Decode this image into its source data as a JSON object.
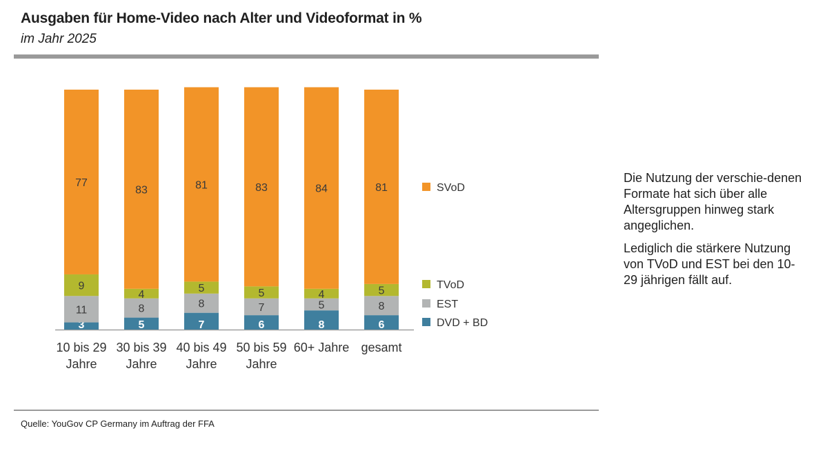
{
  "title": "Ausgaben für Home-Video nach Alter und Videoformat in %",
  "subtitle": "im Jahr 2025",
  "source": "Quelle: YouGov CP Germany im Auftrag der FFA",
  "note": {
    "p1": "Die Nutzung der verschie-denen Formate hat sich über alle Altersgruppen hinweg stark angeglichen.",
    "p2": "Lediglich die stärkere Nutzung von TVoD und EST bei den 10-29 jährigen fällt auf."
  },
  "chart_data": {
    "type": "bar",
    "stacked": true,
    "categories": [
      [
        "10 bis 29",
        "Jahre"
      ],
      [
        "30 bis 39",
        "Jahre"
      ],
      [
        "40 bis 49",
        "Jahre"
      ],
      [
        "50 bis 59",
        "Jahre"
      ],
      [
        "60+ Jahre"
      ],
      [
        "gesamt"
      ]
    ],
    "series": [
      {
        "name": "DVD + BD",
        "color": "#3f7f9e",
        "label_color": "#ffffff",
        "values": [
          3,
          5,
          7,
          6,
          8,
          6
        ]
      },
      {
        "name": "EST",
        "color": "#b2b4b4",
        "label_color": "#3a3a3a",
        "values": [
          11,
          8,
          8,
          7,
          5,
          8
        ]
      },
      {
        "name": "TVoD",
        "color": "#b3b82f",
        "label_color": "#3a3a3a",
        "values": [
          9,
          4,
          5,
          5,
          4,
          5
        ]
      },
      {
        "name": "SVoD",
        "color": "#f29428",
        "label_color": "#3a3a3a",
        "values": [
          77,
          83,
          81,
          83,
          84,
          81
        ]
      }
    ],
    "ylim": [
      0,
      100
    ],
    "legend_position": "right",
    "grid": false
  }
}
